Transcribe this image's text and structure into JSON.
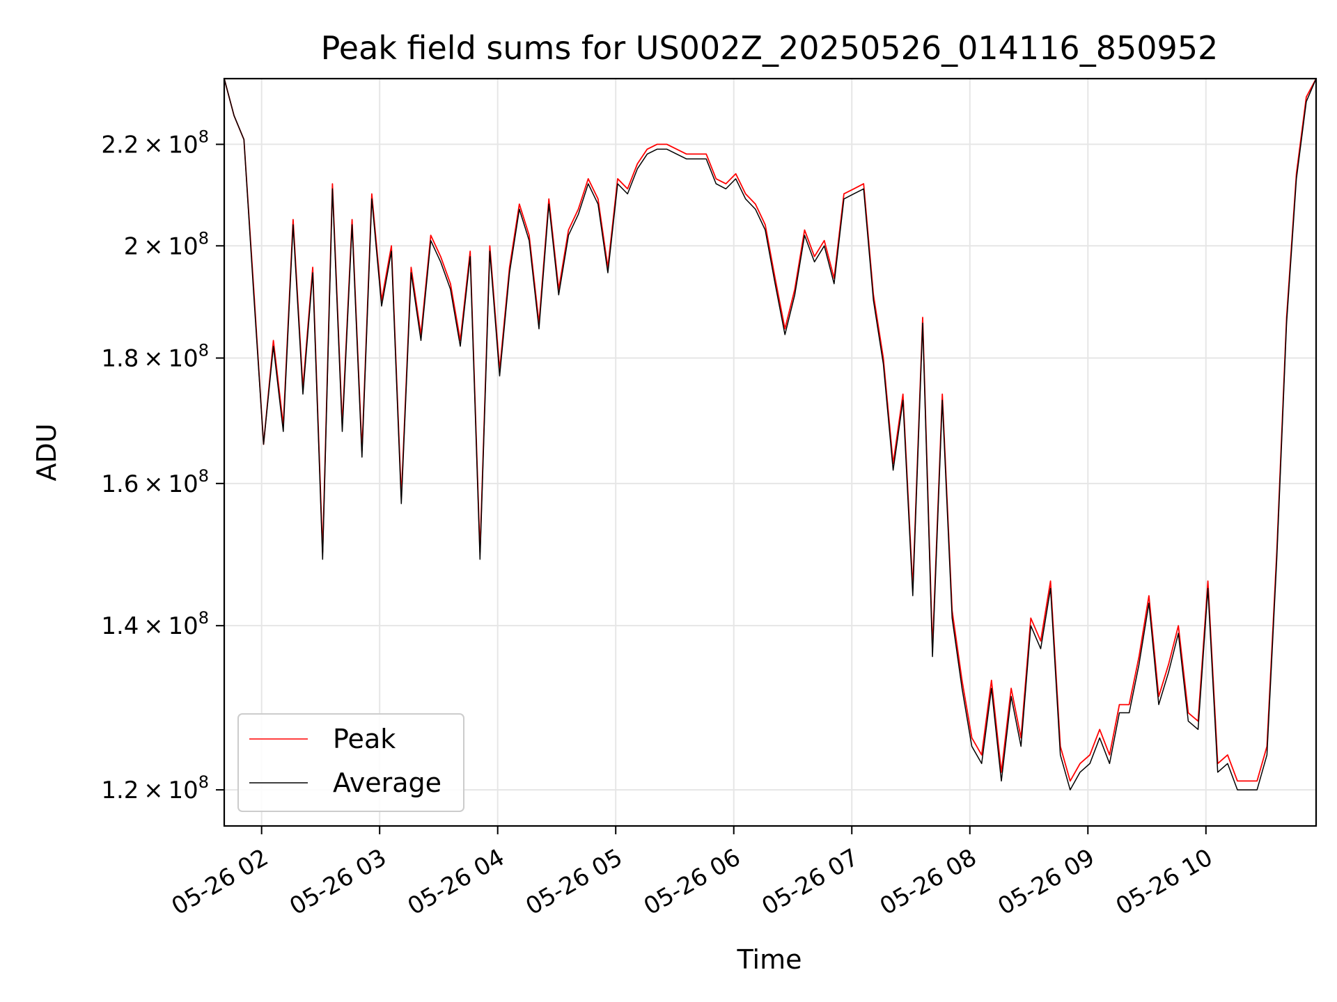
{
  "chart_data": {
    "type": "line",
    "title": "Peak field sums for US002Z_20250526_014116_850952",
    "xlabel": "Time",
    "ylabel": "ADU",
    "yscale": "log",
    "grid": true,
    "legend_position": "lower-left",
    "xlim": [
      "05-26 01:41",
      "05-26 10:56"
    ],
    "ylim": [
      116000000,
      234000000
    ],
    "x_ticks": [
      "05-26 02",
      "05-26 03",
      "05-26 04",
      "05-26 05",
      "05-26 06",
      "05-26 07",
      "05-26 08",
      "05-26 09",
      "05-26 10"
    ],
    "y_ticks": [
      {
        "value": 120000000,
        "mantissa": "1.2",
        "exp": "8"
      },
      {
        "value": 140000000,
        "mantissa": "1.4",
        "exp": "8"
      },
      {
        "value": 160000000,
        "mantissa": "1.6",
        "exp": "8"
      },
      {
        "value": 180000000,
        "mantissa": "1.8",
        "exp": "8"
      },
      {
        "value": 200000000,
        "mantissa": "2",
        "exp": "8"
      },
      {
        "value": 220000000,
        "mantissa": "2.2",
        "exp": "8"
      }
    ],
    "x": [
      "05-26 01:41",
      "05-26 01:46",
      "05-26 01:51",
      "05-26 01:56",
      "05-26 02:01",
      "05-26 02:06",
      "05-26 02:11",
      "05-26 02:16",
      "05-26 02:21",
      "05-26 02:26",
      "05-26 02:31",
      "05-26 02:36",
      "05-26 02:41",
      "05-26 02:46",
      "05-26 02:51",
      "05-26 02:56",
      "05-26 03:01",
      "05-26 03:06",
      "05-26 03:11",
      "05-26 03:16",
      "05-26 03:21",
      "05-26 03:26",
      "05-26 03:31",
      "05-26 03:36",
      "05-26 03:41",
      "05-26 03:46",
      "05-26 03:51",
      "05-26 03:56",
      "05-26 04:01",
      "05-26 04:06",
      "05-26 04:11",
      "05-26 04:16",
      "05-26 04:21",
      "05-26 04:26",
      "05-26 04:31",
      "05-26 04:36",
      "05-26 04:41",
      "05-26 04:46",
      "05-26 04:51",
      "05-26 04:56",
      "05-26 05:01",
      "05-26 05:06",
      "05-26 05:11",
      "05-26 05:16",
      "05-26 05:21",
      "05-26 05:26",
      "05-26 05:31",
      "05-26 05:36",
      "05-26 05:41",
      "05-26 05:46",
      "05-26 05:51",
      "05-26 05:56",
      "05-26 06:01",
      "05-26 06:06",
      "05-26 06:11",
      "05-26 06:16",
      "05-26 06:21",
      "05-26 06:26",
      "05-26 06:31",
      "05-26 06:36",
      "05-26 06:41",
      "05-26 06:46",
      "05-26 06:51",
      "05-26 06:56",
      "05-26 07:01",
      "05-26 07:06",
      "05-26 07:11",
      "05-26 07:16",
      "05-26 07:21",
      "05-26 07:26",
      "05-26 07:31",
      "05-26 07:36",
      "05-26 07:41",
      "05-26 07:46",
      "05-26 07:51",
      "05-26 07:56",
      "05-26 08:01",
      "05-26 08:06",
      "05-26 08:11",
      "05-26 08:16",
      "05-26 08:21",
      "05-26 08:26",
      "05-26 08:31",
      "05-26 08:36",
      "05-26 08:41",
      "05-26 08:46",
      "05-26 08:51",
      "05-26 08:56",
      "05-26 09:01",
      "05-26 09:06",
      "05-26 09:11",
      "05-26 09:16",
      "05-26 09:21",
      "05-26 09:26",
      "05-26 09:31",
      "05-26 09:36",
      "05-26 09:41",
      "05-26 09:46",
      "05-26 09:51",
      "05-26 09:56",
      "05-26 10:01",
      "05-26 10:06",
      "05-26 10:11",
      "05-26 10:16",
      "05-26 10:21",
      "05-26 10:26",
      "05-26 10:31",
      "05-26 10:36",
      "05-26 10:41",
      "05-26 10:46",
      "05-26 10:51",
      "05-26 10:56"
    ],
    "series": [
      {
        "name": "Peak",
        "color": "#ff0000",
        "values": [
          234000000,
          226000000,
          221000000,
          192000000,
          166000000,
          183000000,
          169000000,
          205000000,
          175000000,
          196000000,
          150000000,
          212000000,
          169000000,
          205000000,
          165000000,
          210000000,
          190000000,
          200000000,
          158000000,
          196000000,
          184000000,
          202000000,
          198000000,
          193000000,
          183000000,
          199000000,
          150000000,
          200000000,
          178000000,
          196000000,
          208000000,
          202000000,
          186000000,
          209000000,
          192000000,
          203000000,
          207000000,
          213000000,
          209000000,
          196000000,
          213000000,
          211000000,
          216000000,
          219000000,
          220000000,
          220000000,
          219000000,
          218000000,
          218000000,
          218000000,
          213000000,
          212000000,
          214000000,
          210000000,
          208000000,
          204000000,
          194000000,
          185000000,
          192000000,
          203000000,
          198000000,
          201000000,
          194000000,
          210000000,
          211000000,
          212000000,
          191000000,
          180000000,
          163000000,
          174000000,
          145000000,
          187000000,
          137000000,
          174000000,
          142000000,
          133000000,
          126000000,
          124000000,
          133000000,
          122000000,
          132000000,
          126000000,
          141000000,
          138000000,
          146000000,
          125000000,
          121000000,
          123000000,
          124000000,
          127000000,
          124000000,
          130000000,
          130000000,
          136000000,
          144000000,
          131000000,
          135000000,
          140000000,
          129000000,
          128000000,
          146000000,
          123000000,
          124000000,
          121000000,
          121000000,
          121000000,
          125000000,
          150000000,
          187000000,
          214000000,
          230000000,
          234000000
        ]
      },
      {
        "name": "Average",
        "color": "#000000",
        "values": [
          234000000,
          226000000,
          221000000,
          191000000,
          166000000,
          182000000,
          168000000,
          204000000,
          174000000,
          195000000,
          149000000,
          211000000,
          168000000,
          204000000,
          164000000,
          209000000,
          189000000,
          199000000,
          157000000,
          195000000,
          183000000,
          201000000,
          197000000,
          192000000,
          182000000,
          198000000,
          149000000,
          199000000,
          177000000,
          195000000,
          207000000,
          201000000,
          185000000,
          208000000,
          191000000,
          202000000,
          206000000,
          212000000,
          208000000,
          195000000,
          212000000,
          210000000,
          215000000,
          218000000,
          219000000,
          219000000,
          218000000,
          217000000,
          217000000,
          217000000,
          212000000,
          211000000,
          213000000,
          209000000,
          207000000,
          203000000,
          193000000,
          184000000,
          191000000,
          202000000,
          197000000,
          200000000,
          193000000,
          209000000,
          210000000,
          211000000,
          190000000,
          179000000,
          162000000,
          173000000,
          144000000,
          186000000,
          136000000,
          173000000,
          141000000,
          132000000,
          125000000,
          123000000,
          132000000,
          121000000,
          131000000,
          125000000,
          140000000,
          137000000,
          145000000,
          124000000,
          120000000,
          122000000,
          123000000,
          126000000,
          123000000,
          129000000,
          129000000,
          135000000,
          143000000,
          130000000,
          134000000,
          139000000,
          128000000,
          127000000,
          145000000,
          122000000,
          123000000,
          120000000,
          120000000,
          120000000,
          124000000,
          149000000,
          186000000,
          213000000,
          229000000,
          234000000
        ]
      }
    ]
  }
}
